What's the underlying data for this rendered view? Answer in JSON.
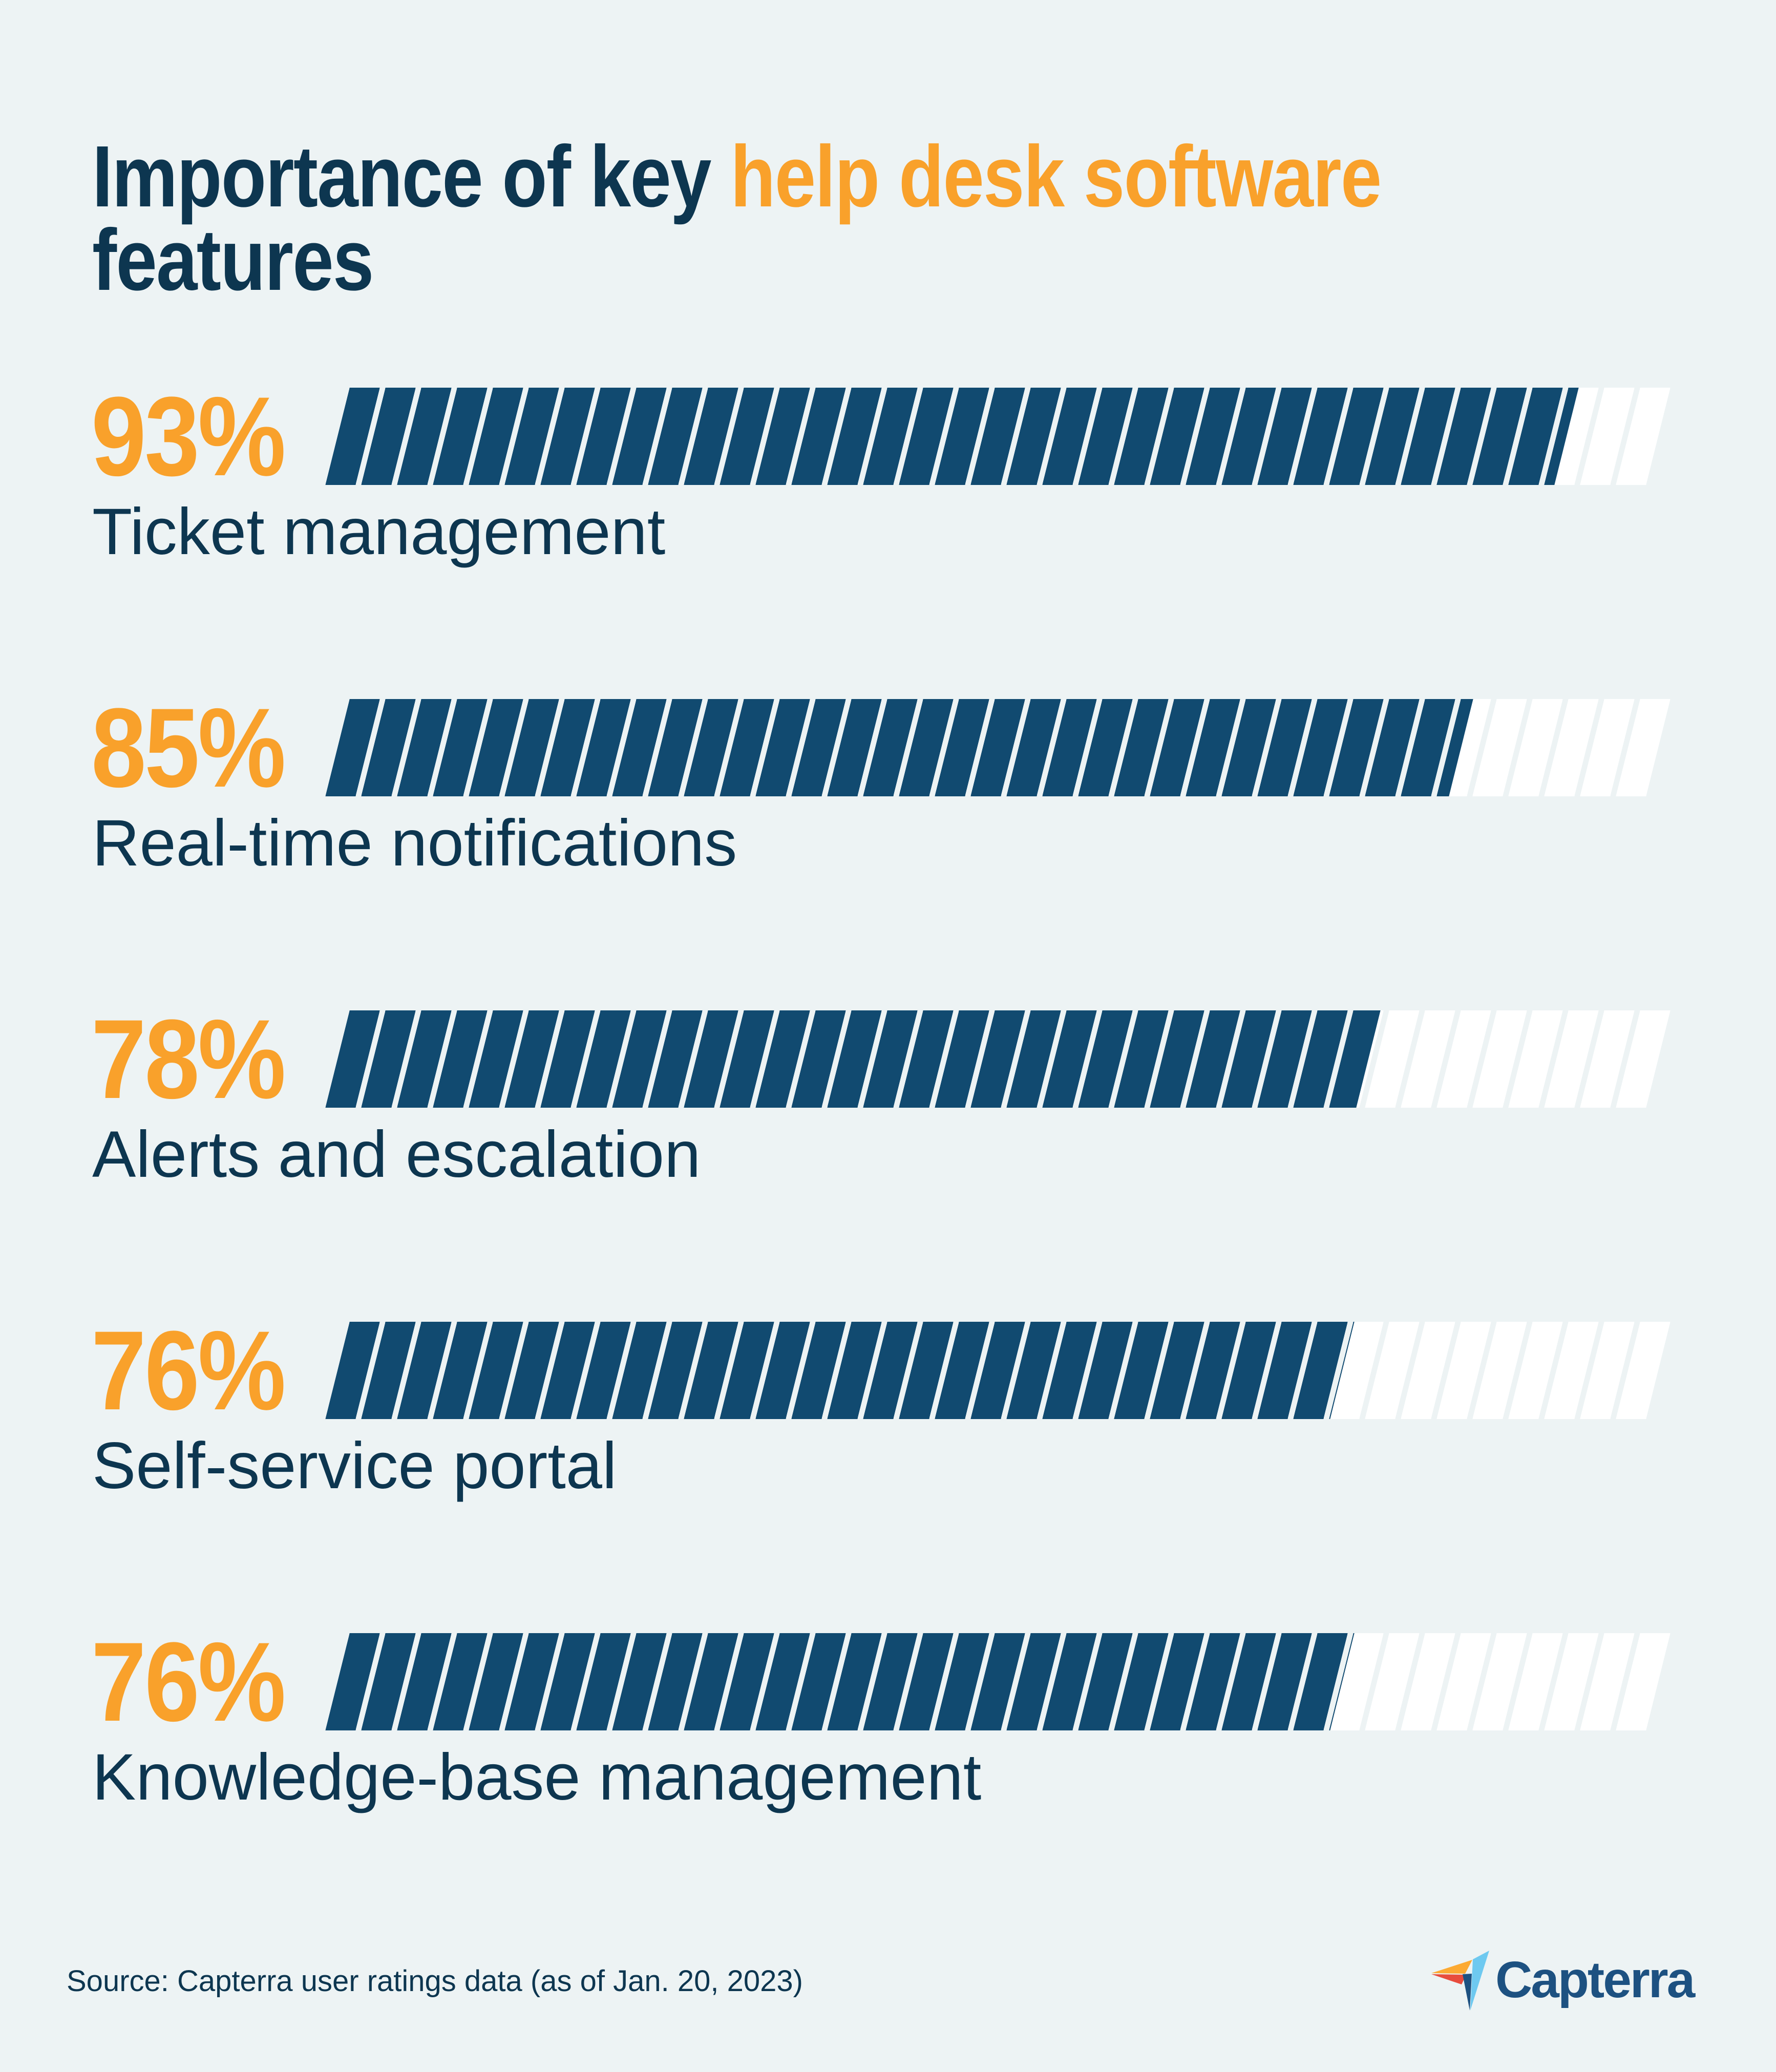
{
  "title": {
    "prefix": "Importance of key ",
    "highlight": "help desk software",
    "suffix": "features"
  },
  "bars": [
    {
      "pct_display": "93%",
      "value": 93,
      "label": "Ticket management"
    },
    {
      "pct_display": "85%",
      "value": 85,
      "label": "Real-time notifications"
    },
    {
      "pct_display": "78%",
      "value": 78,
      "label": "Alerts and escalation"
    },
    {
      "pct_display": "76%",
      "value": 76,
      "label": "Self-service portal"
    },
    {
      "pct_display": "76%",
      "value": 76,
      "label": "Knowledge-base management"
    }
  ],
  "source": {
    "text": "Source: Capterra user ratings data (as of Jan. 20, 2023)"
  },
  "logo": {
    "wordmark": "Capterra"
  },
  "colors": {
    "background": "#edf3f4",
    "bar_fill_navy": "#114a70",
    "bar_track_stripe": "#ffffff",
    "accent_orange": "#f9a12b",
    "text_navy": "#0d3650",
    "logo_navy": "#1d5181",
    "logo_lightblue": "#6ec9f0",
    "logo_orange": "#fcaa33",
    "logo_red": "#e84c3d"
  },
  "chart_data": {
    "type": "bar",
    "orientation": "horizontal",
    "title": "Importance of key help desk software features",
    "categories": [
      "Ticket management",
      "Real-time notifications",
      "Alerts and escalation",
      "Self-service portal",
      "Knowledge-base management"
    ],
    "values": [
      93,
      85,
      78,
      76,
      76
    ],
    "value_unit": "%",
    "xlabel": "",
    "ylabel": "",
    "xlim": [
      0,
      100
    ],
    "grid": false,
    "legend": false,
    "annotations": [
      "93%",
      "85%",
      "78%",
      "76%",
      "76%"
    ],
    "source": "Source: Capterra user ratings data (as of Jan. 20, 2023)",
    "style": "hatched diagonal stripe bars, navy fill on white striped track"
  }
}
